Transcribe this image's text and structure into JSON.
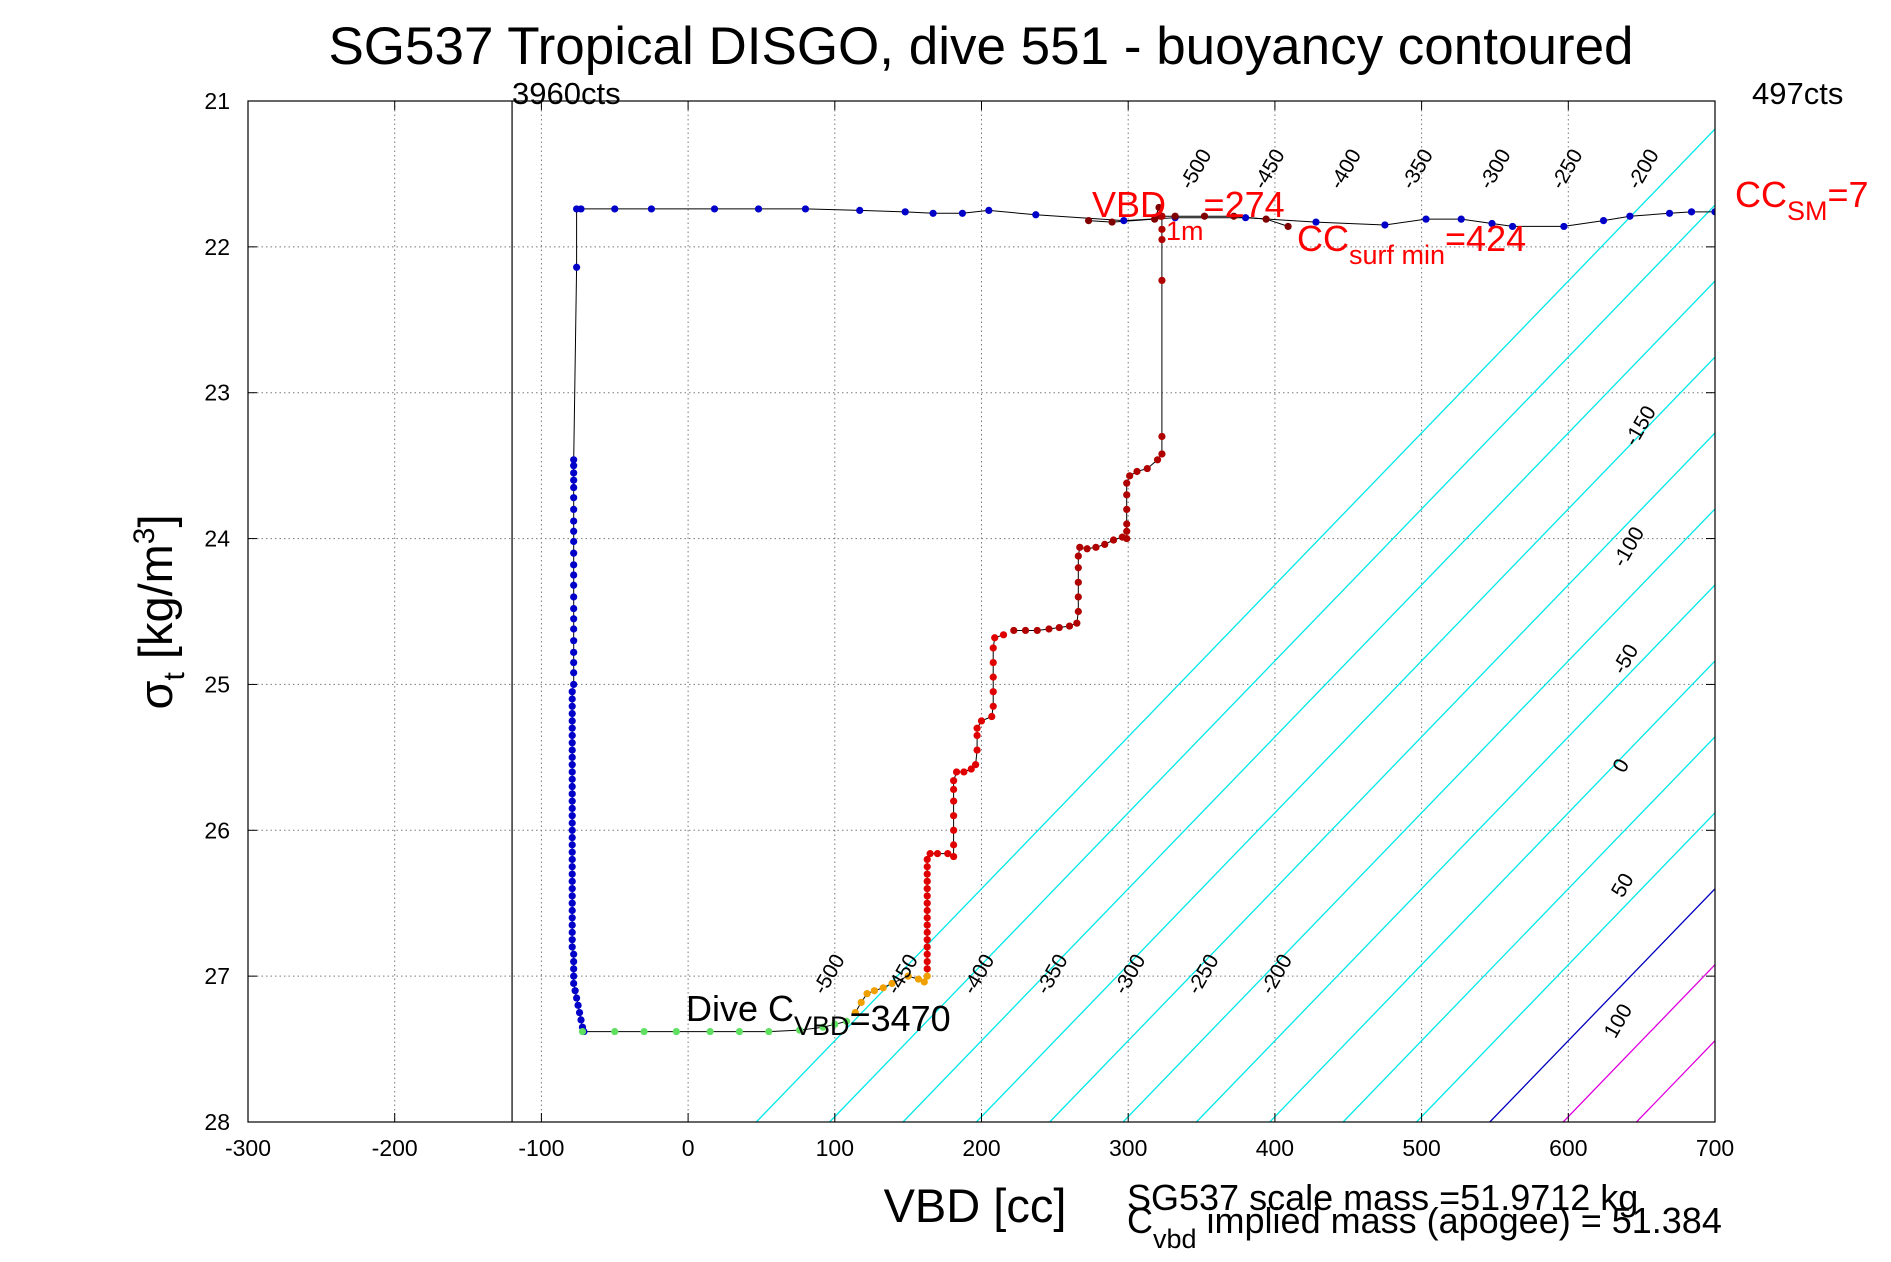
{
  "chart_data": {
    "type": "scatter",
    "title": "SG537 Tropical DISGO, dive 551 - buoyancy contoured",
    "xlabel": "VBD [cc]",
    "ylabel_main": "σ",
    "ylabel_sub": "t",
    "ylabel_rest": " [kg/m",
    "ylabel_sup": "3",
    "ylabel_end": "]",
    "xlim": [
      -300,
      700
    ],
    "ylim": [
      21,
      28
    ],
    "y_reversed": true,
    "grid": true,
    "xticks": [
      -300,
      -200,
      -100,
      0,
      100,
      200,
      300,
      400,
      500,
      600,
      700
    ],
    "yticks": [
      21,
      22,
      23,
      24,
      25,
      26,
      27,
      28
    ],
    "colors": {
      "contour": "#00e8e8",
      "zero_contour": "#0000c0",
      "high_contour": "#e000e0",
      "dive_path": "#000000",
      "annotation_red": "#ff0000",
      "annotation_black": "#000000"
    },
    "buoyancy_contours": [
      {
        "value": -500,
        "x_at_28": 46.5,
        "label": "-500"
      },
      {
        "value": -450,
        "x_at_28": 96.5,
        "label": "-450"
      },
      {
        "value": -400,
        "x_at_28": 146.5,
        "label": "-400"
      },
      {
        "value": -350,
        "x_at_28": 196.5,
        "label": "-350"
      },
      {
        "value": -300,
        "x_at_28": 246.5,
        "label": "-300"
      },
      {
        "value": -250,
        "x_at_28": 296.5,
        "label": "-250"
      },
      {
        "value": -200,
        "x_at_28": 346.5,
        "label": "-200"
      },
      {
        "value": -150,
        "x_at_28": 396.5,
        "label": "-150"
      },
      {
        "value": -100,
        "x_at_28": 446.5,
        "label": "-100"
      },
      {
        "value": -50,
        "x_at_28": 496.5,
        "label": "-50"
      },
      {
        "value": 0,
        "x_at_28": 546.5,
        "label": "0"
      },
      {
        "value": 50,
        "x_at_28": 596.5,
        "label": "50"
      },
      {
        "value": 100,
        "x_at_28": 646.5,
        "label": "100"
      }
    ],
    "contour_slope_cc_per_sigma": 96,
    "contour_label_positions": [
      {
        "label": "-500",
        "x": 350,
        "y": 21.49
      },
      {
        "label": "-450",
        "x": 400,
        "y": 21.49
      },
      {
        "label": "-400",
        "x": 452,
        "y": 21.49
      },
      {
        "label": "-350",
        "x": 501,
        "y": 21.49
      },
      {
        "label": "-300",
        "x": 554,
        "y": 21.49
      },
      {
        "label": "-250",
        "x": 603,
        "y": 21.49
      },
      {
        "label": "-200",
        "x": 655,
        "y": 21.49
      },
      {
        "label": "-150",
        "x": 653,
        "y": 23.25
      },
      {
        "label": "-100",
        "x": 645,
        "y": 24.08
      },
      {
        "label": "-50",
        "x": 643,
        "y": 24.85
      },
      {
        "label": "0",
        "x": 640,
        "y": 25.58
      },
      {
        "label": "50",
        "x": 641,
        "y": 26.4
      },
      {
        "label": "100",
        "x": 638,
        "y": 27.33
      },
      {
        "label": "-500",
        "x": 100,
        "y": 27.01
      },
      {
        "label": "-450",
        "x": 150,
        "y": 27.01
      },
      {
        "label": "-400",
        "x": 202,
        "y": 27.01
      },
      {
        "label": "-350",
        "x": 252,
        "y": 27.01
      },
      {
        "label": "-300",
        "x": 305,
        "y": 27.01
      },
      {
        "label": "-250",
        "x": 355,
        "y": 27.01
      },
      {
        "label": "-200",
        "x": 405,
        "y": 27.01
      }
    ],
    "series": [
      {
        "path_color": "#000000",
        "marker_color": "#0000c8",
        "points": [
          [
            -73,
            21.74
          ],
          [
            -50,
            21.74
          ],
          [
            -25,
            21.74
          ],
          [
            18,
            21.74
          ],
          [
            48,
            21.74
          ],
          [
            80,
            21.74
          ],
          [
            117,
            21.75
          ],
          [
            148,
            21.76
          ],
          [
            167,
            21.77
          ],
          [
            187,
            21.77
          ],
          [
            205,
            21.75
          ],
          [
            237,
            21.78
          ],
          [
            297,
            21.82
          ],
          [
            332,
            21.8
          ],
          [
            380,
            21.8
          ],
          [
            428,
            21.83
          ],
          [
            475,
            21.85
          ],
          [
            503,
            21.81
          ],
          [
            527,
            21.81
          ],
          [
            548,
            21.84
          ],
          [
            562,
            21.86
          ],
          [
            597,
            21.86
          ],
          [
            624,
            21.82
          ],
          [
            642,
            21.79
          ],
          [
            669,
            21.77
          ],
          [
            684,
            21.76
          ],
          [
            700,
            21.76
          ]
        ]
      },
      {
        "path_color": "#000000",
        "marker_color": "#800000",
        "points": [
          [
            273,
            21.82
          ],
          [
            289,
            21.83
          ],
          [
            318,
            21.81
          ],
          [
            321,
            21.73
          ],
          [
            322,
            21.79
          ],
          [
            332,
            21.79
          ],
          [
            352,
            21.79
          ],
          [
            372,
            21.79
          ],
          [
            394,
            21.81
          ],
          [
            409,
            21.86
          ]
        ]
      },
      {
        "path_color": "#000000",
        "marker_color": "#0000c8",
        "points": [
          [
            -76,
            21.74
          ],
          [
            -76,
            22.14
          ],
          [
            -78,
            23.46
          ],
          [
            -78,
            23.5
          ],
          [
            -78,
            23.55
          ],
          [
            -78,
            23.6
          ],
          [
            -78,
            23.65
          ],
          [
            -78,
            23.72
          ],
          [
            -78,
            23.8
          ],
          [
            -78,
            23.88
          ],
          [
            -78,
            23.95
          ],
          [
            -78,
            24.02
          ],
          [
            -78,
            24.1
          ],
          [
            -78,
            24.18
          ],
          [
            -78,
            24.25
          ],
          [
            -78,
            24.32
          ],
          [
            -78,
            24.4
          ],
          [
            -78,
            24.48
          ],
          [
            -78,
            24.55
          ],
          [
            -78,
            24.62
          ],
          [
            -78,
            24.7
          ],
          [
            -78,
            24.78
          ],
          [
            -78,
            24.85
          ],
          [
            -78,
            24.92
          ],
          [
            -78,
            25.0
          ],
          [
            -79,
            25.05
          ],
          [
            -79,
            25.1
          ],
          [
            -79,
            25.15
          ],
          [
            -79,
            25.2
          ],
          [
            -79,
            25.25
          ],
          [
            -79,
            25.3
          ],
          [
            -79,
            25.35
          ],
          [
            -79,
            25.4
          ],
          [
            -79,
            25.45
          ],
          [
            -79,
            25.5
          ],
          [
            -79,
            25.55
          ],
          [
            -79,
            25.6
          ],
          [
            -79,
            25.65
          ],
          [
            -79,
            25.7
          ],
          [
            -79,
            25.75
          ],
          [
            -79,
            25.8
          ],
          [
            -79,
            25.85
          ],
          [
            -79,
            25.9
          ],
          [
            -79,
            25.95
          ],
          [
            -79,
            26.0
          ],
          [
            -79,
            26.05
          ],
          [
            -79,
            26.1
          ],
          [
            -79,
            26.15
          ],
          [
            -79,
            26.2
          ],
          [
            -79,
            26.25
          ],
          [
            -79,
            26.3
          ],
          [
            -79,
            26.35
          ],
          [
            -79,
            26.4
          ],
          [
            -79,
            26.45
          ],
          [
            -79,
            26.5
          ],
          [
            -79,
            26.55
          ],
          [
            -79,
            26.6
          ],
          [
            -79,
            26.65
          ],
          [
            -79,
            26.7
          ],
          [
            -79,
            26.75
          ],
          [
            -79,
            26.8
          ],
          [
            -78,
            26.85
          ],
          [
            -78,
            26.9
          ],
          [
            -78,
            26.95
          ],
          [
            -78,
            27.0
          ],
          [
            -78,
            27.05
          ],
          [
            -77,
            27.1
          ],
          [
            -76,
            27.15
          ],
          [
            -75,
            27.2
          ],
          [
            -74,
            27.25
          ],
          [
            -73,
            27.3
          ],
          [
            -72,
            27.35
          ],
          [
            -71,
            27.38
          ]
        ]
      },
      {
        "path_color": "#000000",
        "marker_color": "#60e060",
        "points": [
          [
            -72,
            27.38
          ],
          [
            -50,
            27.38
          ],
          [
            -30,
            27.38
          ],
          [
            -8,
            27.38
          ],
          [
            15,
            27.38
          ],
          [
            35,
            27.38
          ],
          [
            55,
            27.38
          ],
          [
            76,
            27.37
          ],
          [
            92,
            27.35
          ],
          [
            100,
            27.33
          ],
          [
            108,
            27.31
          ]
        ]
      },
      {
        "path_color": "#000000",
        "marker_color": "#f0a000",
        "points": [
          [
            114,
            27.25
          ],
          [
            118,
            27.18
          ],
          [
            122,
            27.12
          ],
          [
            127,
            27.1
          ],
          [
            133,
            27.08
          ],
          [
            139,
            27.05
          ],
          [
            150,
            27.0
          ],
          [
            157,
            27.02
          ],
          [
            161,
            27.04
          ],
          [
            163,
            27.0
          ]
        ]
      },
      {
        "path_color": "#000000",
        "marker_color": "#e00000",
        "points": [
          [
            163,
            26.95
          ],
          [
            163,
            26.9
          ],
          [
            163,
            26.85
          ],
          [
            163,
            26.8
          ],
          [
            163,
            26.75
          ],
          [
            163,
            26.7
          ],
          [
            163,
            26.65
          ],
          [
            163,
            26.6
          ],
          [
            163,
            26.55
          ],
          [
            163,
            26.5
          ],
          [
            163,
            26.45
          ],
          [
            163,
            26.4
          ],
          [
            163,
            26.35
          ],
          [
            163,
            26.3
          ],
          [
            163,
            26.25
          ],
          [
            163,
            26.2
          ],
          [
            165,
            26.16
          ],
          [
            170,
            26.16
          ],
          [
            177,
            26.16
          ],
          [
            181,
            26.18
          ],
          [
            181,
            26.1
          ],
          [
            181,
            26.0
          ],
          [
            181,
            25.9
          ],
          [
            181,
            25.8
          ],
          [
            181,
            25.72
          ],
          [
            181,
            25.66
          ],
          [
            183,
            25.6
          ],
          [
            188,
            25.6
          ],
          [
            193,
            25.58
          ],
          [
            196,
            25.55
          ],
          [
            197,
            25.45
          ],
          [
            197,
            25.35
          ],
          [
            197,
            25.3
          ],
          [
            200,
            25.25
          ],
          [
            207,
            25.22
          ],
          [
            208,
            25.15
          ],
          [
            208,
            25.05
          ],
          [
            208,
            24.95
          ],
          [
            208,
            24.85
          ],
          [
            208,
            24.75
          ],
          [
            209,
            24.68
          ],
          [
            215,
            24.66
          ]
        ]
      },
      {
        "path_color": "#000000",
        "marker_color": "#b00000",
        "points": [
          [
            222,
            24.63
          ],
          [
            230,
            24.63
          ],
          [
            238,
            24.63
          ],
          [
            246,
            24.62
          ],
          [
            253,
            24.61
          ],
          [
            260,
            24.6
          ],
          [
            265,
            24.58
          ],
          [
            266,
            24.5
          ],
          [
            266,
            24.4
          ],
          [
            266,
            24.3
          ],
          [
            266,
            24.2
          ],
          [
            266,
            24.12
          ],
          [
            267,
            24.06
          ],
          [
            272,
            24.07
          ],
          [
            278,
            24.06
          ],
          [
            284,
            24.04
          ],
          [
            290,
            24.01
          ],
          [
            296,
            23.99
          ],
          [
            299,
            24.0
          ],
          [
            299,
            23.95
          ],
          [
            299,
            23.9
          ],
          [
            299,
            23.8
          ],
          [
            299,
            23.7
          ],
          [
            299,
            23.62
          ],
          [
            301,
            23.57
          ],
          [
            306,
            23.54
          ],
          [
            313,
            23.52
          ],
          [
            320,
            23.46
          ],
          [
            323,
            23.42
          ],
          [
            323,
            23.3
          ],
          [
            323,
            22.23
          ],
          [
            323,
            21.95
          ],
          [
            323,
            21.88
          ],
          [
            323,
            21.79
          ]
        ]
      }
    ],
    "vertical_lines": [
      {
        "x": -120,
        "label": "3960cts"
      }
    ],
    "annotations": {
      "top_left_count": "3960cts",
      "top_right_count": "497cts",
      "vbd1m_main": "VBD",
      "vbd1m_sub": "1m",
      "vbd1m_value": "=274",
      "cc_surf_main": "CC",
      "cc_surf_sub": "surf min",
      "cc_surf_value": "=424",
      "cc_sm_main": "CC",
      "cc_sm_sub": "SM",
      "cc_sm_value": "=7",
      "dive_c_main": "Dive C",
      "dive_c_sub": "VBD",
      "dive_c_value": "=3470",
      "scale_mass": "SG537 scale mass =51.9712 kg",
      "implied_main": "C",
      "implied_sub": "vbd",
      "implied_rest": " implied mass (apogee) = 51.384"
    }
  }
}
